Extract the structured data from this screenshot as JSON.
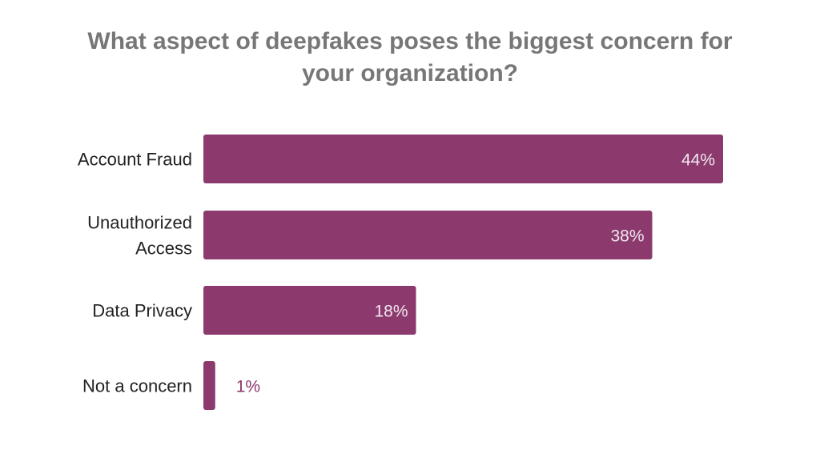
{
  "chart_data": {
    "type": "bar",
    "orientation": "horizontal",
    "title": "What aspect of deepfakes poses the biggest concern for your organization?",
    "title_lines": [
      "What aspect of deepfakes poses the biggest concern for",
      "your organization?"
    ],
    "categories": [
      [
        "Account Fraud"
      ],
      [
        "Unauthorized",
        "Access"
      ],
      [
        "Data Privacy"
      ],
      [
        "Not a concern"
      ]
    ],
    "values": [
      44,
      38,
      18,
      1
    ],
    "labels": [
      "44%",
      "38%",
      "18%",
      "1%"
    ],
    "xlim": [
      0,
      44
    ],
    "grid": false,
    "bar_color": "#8c3a6e"
  }
}
